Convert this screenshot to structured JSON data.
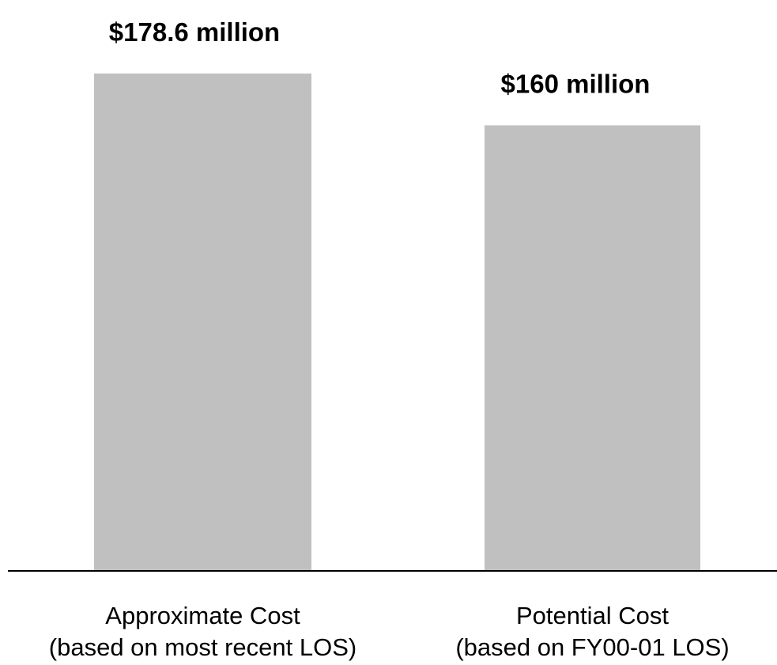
{
  "chart_data": {
    "type": "bar",
    "title": "",
    "xlabel": "",
    "ylabel": "",
    "categories": [
      [
        "Approximate Cost",
        "(based on most recent LOS)"
      ],
      [
        "Potential Cost",
        "(based on FY00-01 LOS)"
      ]
    ],
    "values": [
      178.6,
      160
    ],
    "data_labels": [
      "$178.6 million",
      "$160 million"
    ],
    "ylim": [
      0,
      205
    ],
    "grid": false,
    "bar_color": "#c0c0c0",
    "axis_color": "#000000"
  }
}
